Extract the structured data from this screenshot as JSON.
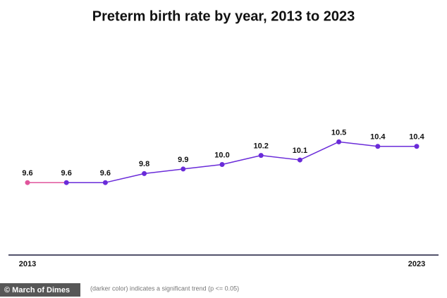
{
  "chart_data": {
    "type": "line",
    "title": "Preterm birth rate by year, 2013 to 2023",
    "x": [
      2013,
      2014,
      2015,
      2016,
      2017,
      2018,
      2019,
      2020,
      2021,
      2022,
      2023
    ],
    "values": [
      9.6,
      9.6,
      9.6,
      9.8,
      9.9,
      10.0,
      10.2,
      10.1,
      10.5,
      10.4,
      10.4
    ],
    "value_labels": [
      "9.6",
      "9.6",
      "9.6",
      "9.8",
      "9.9",
      "10.0",
      "10.2",
      "10.1",
      "10.5",
      "10.4",
      "10.4"
    ],
    "point_colors": [
      "#e0559c",
      "#6a2bd9",
      "#6a2bd9",
      "#6a2bd9",
      "#6a2bd9",
      "#6a2bd9",
      "#6a2bd9",
      "#6a2bd9",
      "#6a2bd9",
      "#6a2bd9",
      "#6a2bd9"
    ],
    "xlim": [
      2013,
      2023
    ],
    "xticks": [
      2013,
      2023
    ],
    "ylim": [
      8.0,
      12.7
    ],
    "footnote": "(darker color) indicates a significant trend (p <= 0.05)",
    "watermark": "© March of Dimes"
  }
}
